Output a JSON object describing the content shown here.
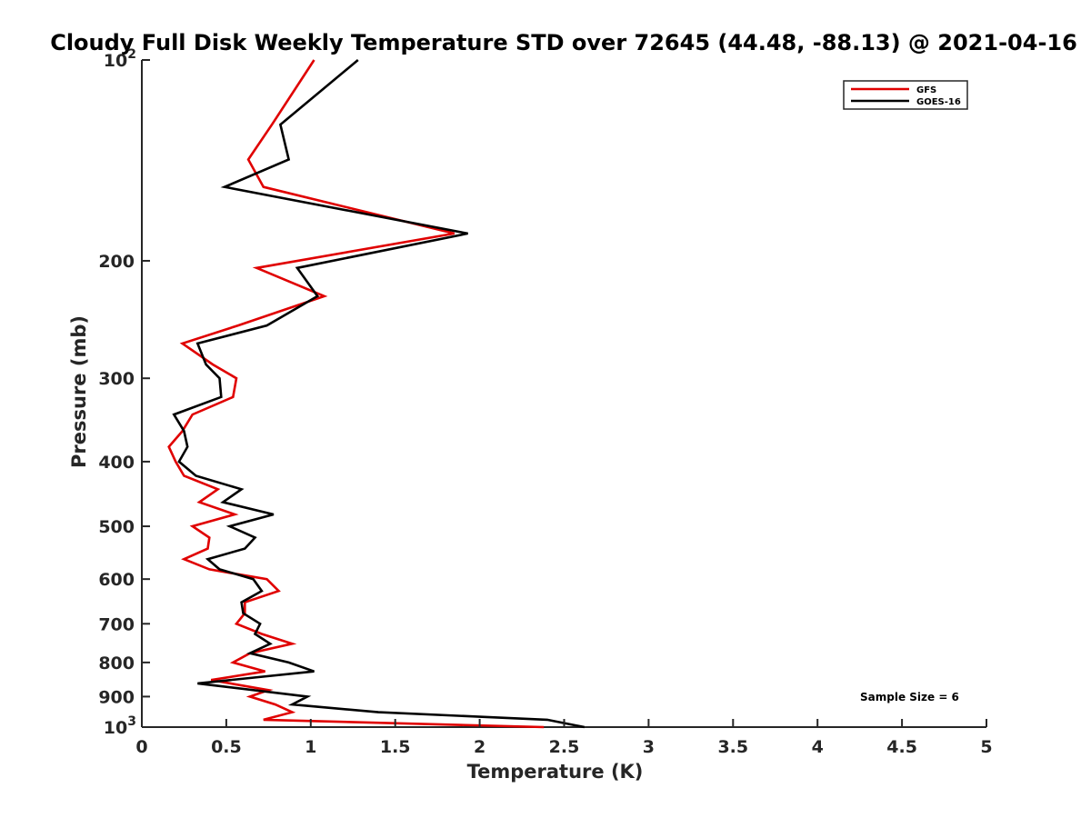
{
  "chart_data": {
    "type": "line",
    "title": "Cloudy Full Disk Weekly Temperature STD over 72645 (44.48, -88.13) @ 2021-04-16",
    "xlabel": "Temperature (K)",
    "ylabel": "Pressure (mb)",
    "xlim": [
      0,
      5
    ],
    "ylim": [
      100,
      1000
    ],
    "y_scale": "log",
    "y_reversed": true,
    "grid": false,
    "legend_position": "top-right",
    "x_ticks": [
      {
        "value": 0,
        "label": "0"
      },
      {
        "value": 0.5,
        "label": "0.5"
      },
      {
        "value": 1,
        "label": "1"
      },
      {
        "value": 1.5,
        "label": "1.5"
      },
      {
        "value": 2,
        "label": "2"
      },
      {
        "value": 2.5,
        "label": "2.5"
      },
      {
        "value": 3,
        "label": "3"
      },
      {
        "value": 3.5,
        "label": "3.5"
      },
      {
        "value": 4,
        "label": "4"
      },
      {
        "value": 4.5,
        "label": "4.5"
      },
      {
        "value": 5,
        "label": "5"
      }
    ],
    "y_ticks": [
      {
        "value": 100,
        "label": "10",
        "sup": "2"
      },
      {
        "value": 200,
        "label": "200"
      },
      {
        "value": 300,
        "label": "300"
      },
      {
        "value": 400,
        "label": "400"
      },
      {
        "value": 500,
        "label": "500"
      },
      {
        "value": 600,
        "label": "600"
      },
      {
        "value": 700,
        "label": "700"
      },
      {
        "value": 800,
        "label": "800"
      },
      {
        "value": 900,
        "label": "900"
      },
      {
        "value": 1000,
        "label": "10",
        "sup": "3"
      }
    ],
    "series": [
      {
        "name": "GFS",
        "color": "#e00000",
        "points": [
          [
            1.02,
            100
          ],
          [
            0.77,
            125
          ],
          [
            0.63,
            141
          ],
          [
            0.72,
            155
          ],
          [
            1.85,
            182
          ],
          [
            0.68,
            205
          ],
          [
            1.08,
            226
          ],
          [
            0.57,
            250
          ],
          [
            0.24,
            266
          ],
          [
            0.42,
            286
          ],
          [
            0.56,
            300
          ],
          [
            0.54,
            320
          ],
          [
            0.3,
            340
          ],
          [
            0.24,
            360
          ],
          [
            0.16,
            380
          ],
          [
            0.2,
            400
          ],
          [
            0.25,
            420
          ],
          [
            0.45,
            440
          ],
          [
            0.34,
            460
          ],
          [
            0.55,
            480
          ],
          [
            0.3,
            500
          ],
          [
            0.4,
            520
          ],
          [
            0.39,
            540
          ],
          [
            0.25,
            560
          ],
          [
            0.4,
            580
          ],
          [
            0.74,
            600
          ],
          [
            0.81,
            625
          ],
          [
            0.61,
            650
          ],
          [
            0.61,
            675
          ],
          [
            0.56,
            700
          ],
          [
            0.71,
            725
          ],
          [
            0.89,
            750
          ],
          [
            0.64,
            775
          ],
          [
            0.54,
            800
          ],
          [
            0.73,
            825
          ],
          [
            0.41,
            850
          ],
          [
            0.75,
            880
          ],
          [
            0.64,
            900
          ],
          [
            0.79,
            925
          ],
          [
            0.89,
            950
          ],
          [
            0.72,
            975
          ],
          [
            2.38,
            1000
          ]
        ]
      },
      {
        "name": "GOES-16",
        "color": "#000000",
        "points": [
          [
            1.28,
            100
          ],
          [
            0.82,
            125
          ],
          [
            0.87,
            141
          ],
          [
            0.49,
            155
          ],
          [
            1.93,
            182
          ],
          [
            0.92,
            205
          ],
          [
            1.04,
            226
          ],
          [
            0.74,
            250
          ],
          [
            0.33,
            266
          ],
          [
            0.38,
            286
          ],
          [
            0.46,
            300
          ],
          [
            0.47,
            320
          ],
          [
            0.19,
            340
          ],
          [
            0.25,
            360
          ],
          [
            0.27,
            380
          ],
          [
            0.22,
            400
          ],
          [
            0.32,
            420
          ],
          [
            0.59,
            440
          ],
          [
            0.48,
            460
          ],
          [
            0.78,
            480
          ],
          [
            0.52,
            500
          ],
          [
            0.67,
            520
          ],
          [
            0.61,
            540
          ],
          [
            0.39,
            560
          ],
          [
            0.46,
            580
          ],
          [
            0.66,
            600
          ],
          [
            0.71,
            625
          ],
          [
            0.59,
            650
          ],
          [
            0.6,
            675
          ],
          [
            0.7,
            700
          ],
          [
            0.67,
            725
          ],
          [
            0.76,
            750
          ],
          [
            0.64,
            775
          ],
          [
            0.87,
            800
          ],
          [
            1.02,
            825
          ],
          [
            0.33,
            860
          ],
          [
            0.98,
            900
          ],
          [
            0.89,
            925
          ],
          [
            1.4,
            950
          ],
          [
            2.4,
            975
          ],
          [
            2.62,
            1000
          ]
        ]
      }
    ],
    "annotations": [
      {
        "text": "Sample Size = 6"
      }
    ]
  }
}
